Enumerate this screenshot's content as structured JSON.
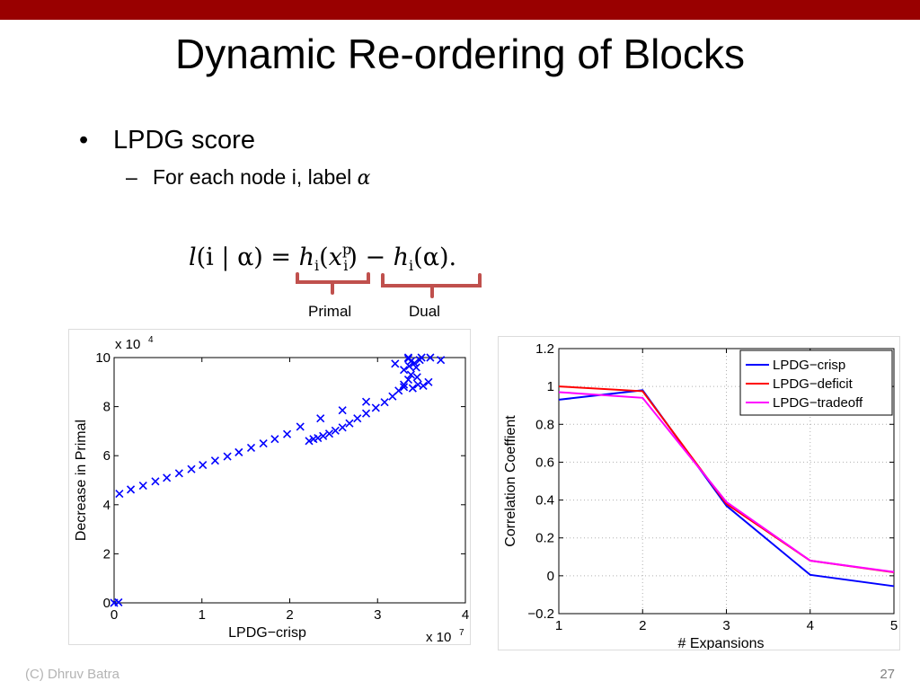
{
  "slide": {
    "title": "Dynamic Re-ordering of Blocks",
    "bullet": "LPDG score",
    "sub_bullet": "For each node i, label",
    "alpha_symbol": "α",
    "formula": {
      "l": "l",
      "lhs_args": "(i | α)",
      "eq": " = ",
      "h1": "h",
      "sub1": "i",
      "arg1_open": "(",
      "x": "x",
      "x_sup": "p",
      "x_sub": "i",
      "arg1_close": ")",
      "minus": " − ",
      "h2": "h",
      "sub2": "i",
      "arg2": "(α).",
      "brace_left_label": "Primal",
      "brace_right_label": "Dual"
    },
    "footer_left": "(C) Dhruv Batra",
    "page_number": "27",
    "colors": {
      "topbar": "#990000",
      "brace": "#c0504d"
    }
  },
  "chart_data": [
    {
      "type": "scatter",
      "xlabel": "LPDG−crisp",
      "ylabel": "Decrease in Primal",
      "x_multiplier_label": "x 10",
      "x_multiplier_exp": "7",
      "y_multiplier_label": "x 10",
      "y_multiplier_exp": "4",
      "xlim": [
        0,
        4
      ],
      "ylim": [
        0,
        10
      ],
      "xticks": [
        "0",
        "1",
        "2",
        "3",
        "4"
      ],
      "yticks": [
        "0",
        "2",
        "4",
        "6",
        "8",
        "10"
      ],
      "marker": "x",
      "color": "#0000ff",
      "points": [
        [
          0.0,
          0.0
        ],
        [
          0.05,
          0.02
        ],
        [
          0.06,
          4.45
        ],
        [
          0.19,
          4.62
        ],
        [
          0.33,
          4.78
        ],
        [
          0.47,
          4.95
        ],
        [
          0.6,
          5.1
        ],
        [
          0.74,
          5.28
        ],
        [
          0.88,
          5.45
        ],
        [
          1.01,
          5.62
        ],
        [
          1.15,
          5.8
        ],
        [
          1.29,
          5.97
        ],
        [
          1.42,
          6.14
        ],
        [
          1.56,
          6.32
        ],
        [
          1.7,
          6.5
        ],
        [
          1.83,
          6.68
        ],
        [
          1.97,
          6.88
        ],
        [
          2.12,
          7.18
        ],
        [
          2.35,
          7.52
        ],
        [
          2.6,
          7.85
        ],
        [
          2.87,
          8.2
        ],
        [
          2.22,
          6.6
        ],
        [
          2.27,
          6.68
        ],
        [
          2.32,
          6.72
        ],
        [
          2.38,
          6.8
        ],
        [
          2.45,
          6.9
        ],
        [
          2.52,
          7.02
        ],
        [
          2.6,
          7.15
        ],
        [
          2.68,
          7.32
        ],
        [
          2.77,
          7.52
        ],
        [
          2.87,
          7.72
        ],
        [
          2.98,
          7.95
        ],
        [
          3.08,
          8.18
        ],
        [
          3.17,
          8.42
        ],
        [
          3.24,
          8.65
        ],
        [
          3.3,
          8.9
        ],
        [
          3.35,
          9.1
        ],
        [
          3.38,
          9.3
        ],
        [
          3.3,
          9.5
        ],
        [
          3.36,
          9.65
        ],
        [
          3.42,
          9.78
        ],
        [
          3.48,
          9.9
        ],
        [
          3.35,
          9.95
        ],
        [
          3.3,
          8.8
        ],
        [
          3.4,
          8.75
        ],
        [
          3.46,
          8.9
        ],
        [
          3.52,
          8.85
        ],
        [
          3.58,
          9.0
        ],
        [
          3.44,
          9.6
        ],
        [
          3.5,
          10.0
        ],
        [
          3.35,
          10.0
        ],
        [
          3.45,
          9.2
        ],
        [
          3.2,
          9.75
        ],
        [
          3.38,
          9.85
        ],
        [
          3.6,
          10.0
        ],
        [
          3.72,
          9.9
        ]
      ]
    },
    {
      "type": "line",
      "xlabel": "# Expansions",
      "ylabel": "Correlation Coeffient",
      "xlim": [
        1,
        5
      ],
      "ylim": [
        -0.2,
        1.2
      ],
      "xticks": [
        "1",
        "2",
        "3",
        "4",
        "5"
      ],
      "yticks": [
        "−0.2",
        "0",
        "0.2",
        "0.4",
        "0.6",
        "0.8",
        "1",
        "1.2"
      ],
      "ytick_values": [
        -0.2,
        0,
        0.2,
        0.4,
        0.6,
        0.8,
        1,
        1.2
      ],
      "grid": true,
      "legend_position": "top-right",
      "x": [
        1,
        2,
        3,
        4,
        5
      ],
      "series": [
        {
          "name": "LPDG−crisp",
          "color": "#0000ff",
          "values": [
            0.93,
            0.98,
            0.37,
            0.005,
            -0.055
          ]
        },
        {
          "name": "LPDG−deficit",
          "color": "#ff0000",
          "values": [
            1.0,
            0.975,
            0.38,
            0.08,
            0.018
          ]
        },
        {
          "name": "LPDG−tradeoff",
          "color": "#ff00ff",
          "values": [
            0.97,
            0.94,
            0.39,
            0.08,
            0.02
          ]
        }
      ]
    }
  ]
}
